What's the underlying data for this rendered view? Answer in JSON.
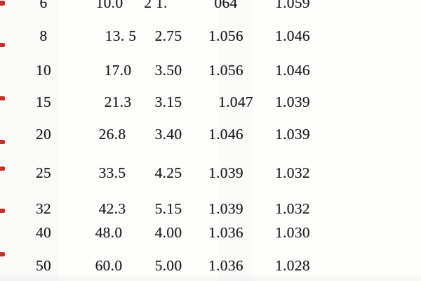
{
  "document": {
    "kind": "scanned-table-page",
    "background_color": "#fdfdfc",
    "ink_color": "#1c1c1c",
    "edge_mark_color": "#b43632"
  },
  "table": {
    "rows": [
      {
        "cells": [
          "6",
          "10.0",
          "2 1.",
          "064",
          "1.059"
        ]
      },
      {
        "cells": [
          "8",
          "13. 5",
          "2.75",
          "1.056",
          "1.046"
        ]
      },
      {
        "cells": [
          "10",
          "17.0",
          "3.50",
          "1.056",
          "1.046"
        ]
      },
      {
        "cells": [
          "15",
          "21.3",
          "3.15",
          "1.047",
          "1.039"
        ]
      },
      {
        "cells": [
          "20",
          "26.8",
          "3.40",
          "1.046",
          "1.039"
        ]
      },
      {
        "cells": [
          "25",
          "33.5",
          "4.25",
          "1.039",
          "1.032"
        ]
      },
      {
        "cells": [
          "32",
          "42.3",
          "5.15",
          "1.039",
          "1.032"
        ]
      },
      {
        "cells": [
          "40",
          "48.0",
          "4.00",
          "1.036",
          "1.030"
        ]
      },
      {
        "cells": [
          "50",
          "60.0",
          "5.00",
          "1.036",
          "1.028"
        ]
      }
    ]
  }
}
